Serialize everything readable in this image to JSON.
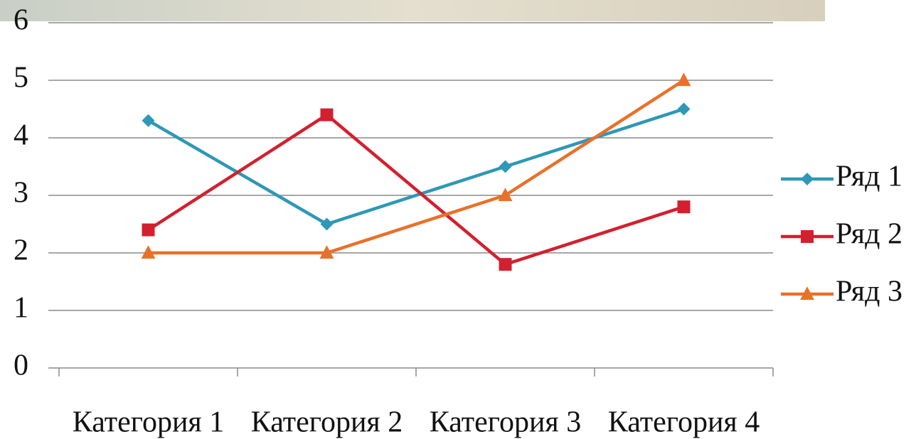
{
  "chart_data": {
    "type": "line",
    "categories": [
      "Категория 1",
      "Категория 2",
      "Категория 3",
      "Категория 4"
    ],
    "series": [
      {
        "name": "Ряд 1",
        "color": "#2e98b6",
        "values": [
          4.3,
          2.5,
          3.5,
          4.5
        ]
      },
      {
        "name": "Ряд 2",
        "color": "#d2202f",
        "values": [
          2.4,
          4.4,
          1.8,
          2.8
        ]
      },
      {
        "name": "Ряд 3",
        "color": "#e8712a",
        "values": [
          2,
          2,
          3,
          5
        ]
      }
    ],
    "ylim": [
      0,
      6
    ],
    "yticks": [
      0,
      1,
      2,
      3,
      4,
      5,
      6
    ],
    "grid": true,
    "legend": "right"
  }
}
